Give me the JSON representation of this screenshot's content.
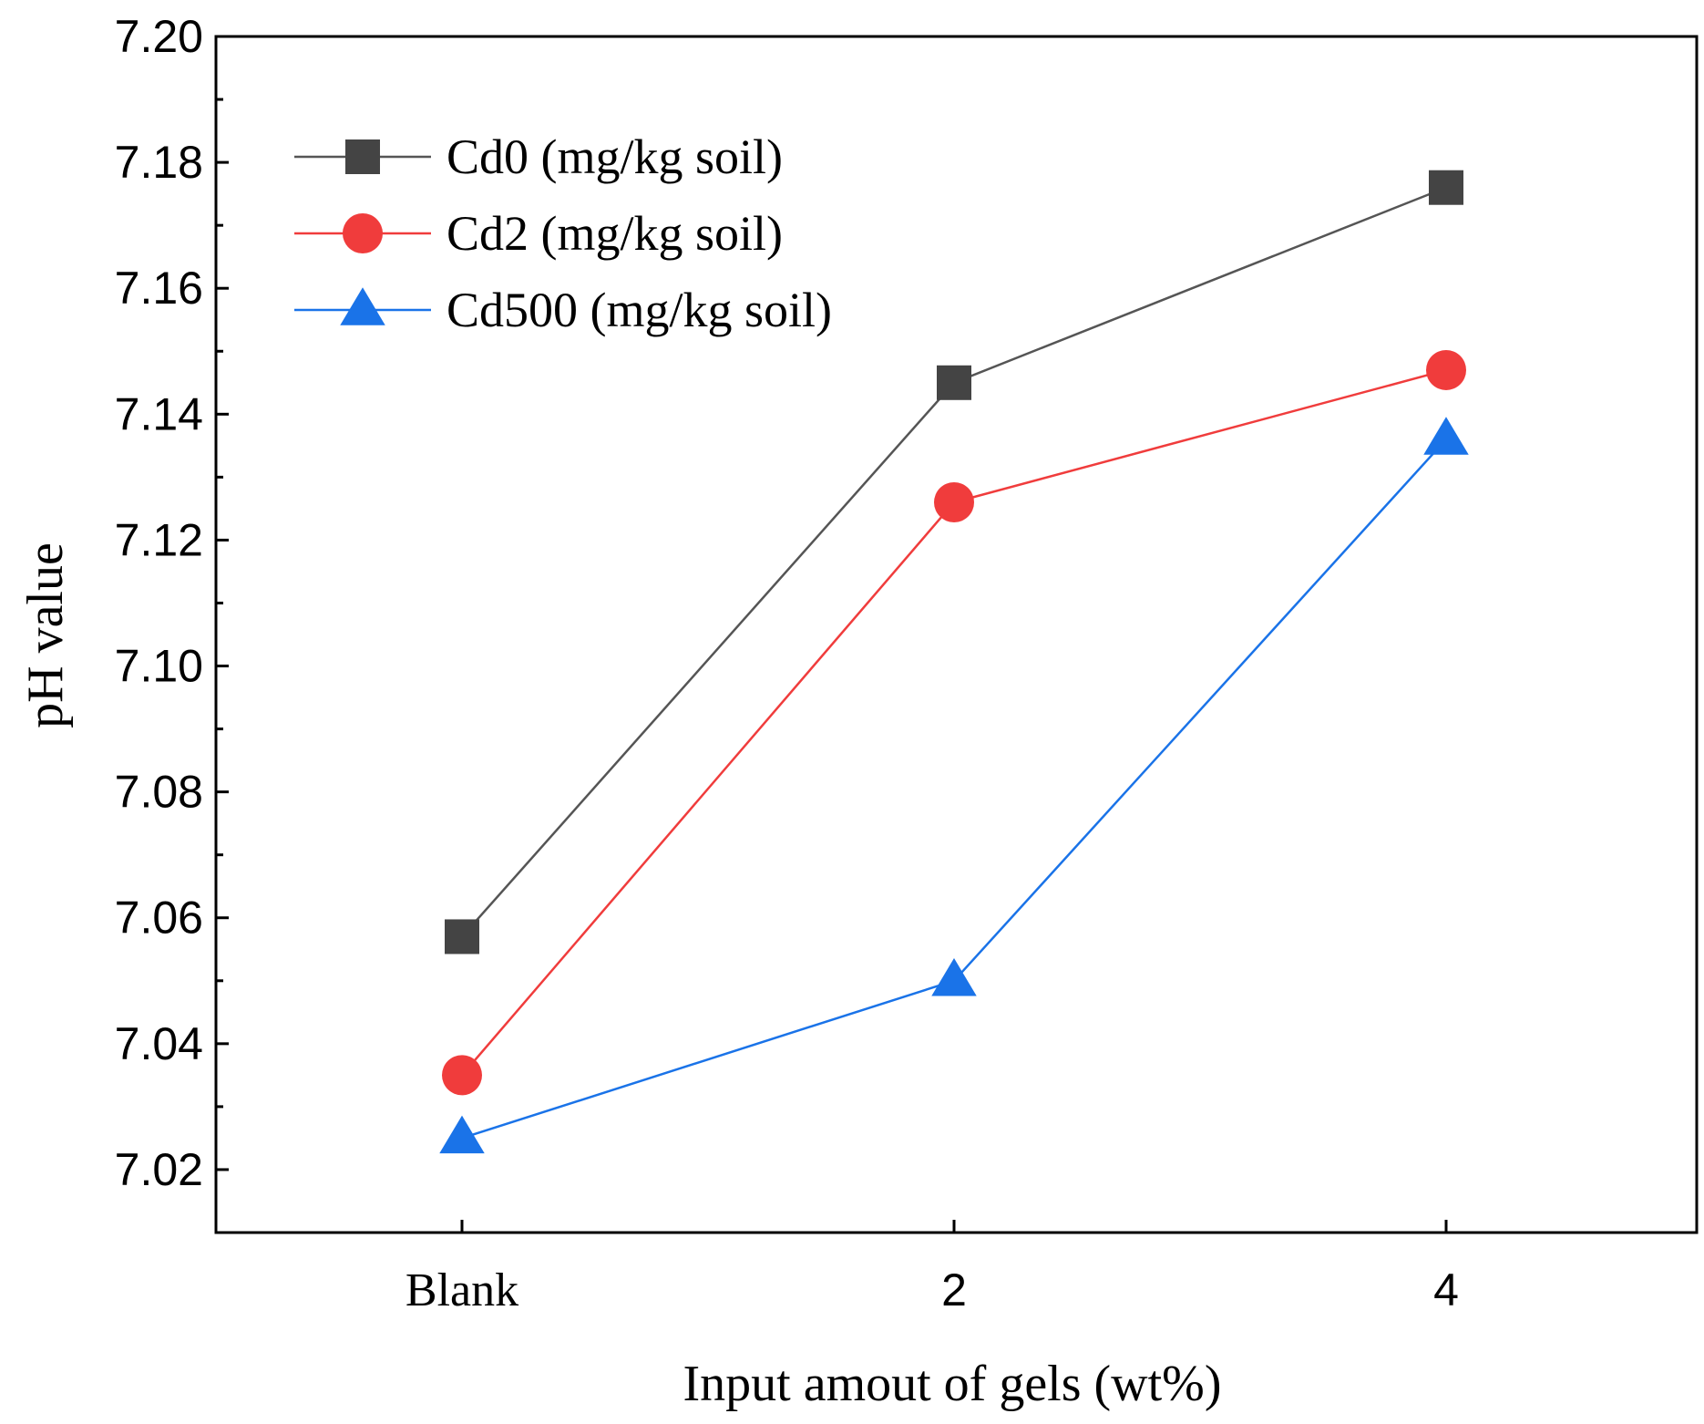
{
  "chart_data": {
    "type": "line",
    "title": "",
    "xlabel": "Input amout of gels (wt%)",
    "ylabel": "pH value",
    "categories": [
      "Blank",
      "2",
      "4"
    ],
    "ylim": [
      7.01,
      7.2
    ],
    "yticks": [
      "7.02",
      "7.04",
      "7.06",
      "7.08",
      "7.10",
      "7.12",
      "7.14",
      "7.16",
      "7.18",
      "7.20"
    ],
    "grid": false,
    "legend_position": "top-left",
    "series": [
      {
        "name": "Cd0 (mg/kg soil)",
        "values": [
          7.057,
          7.145,
          7.176
        ],
        "color": "#444444",
        "line_color": "#555555",
        "marker": "square"
      },
      {
        "name": "Cd2 (mg/kg soil)",
        "values": [
          7.035,
          7.126,
          7.147
        ],
        "color": "#f03c3c",
        "line_color": "#f03c3c",
        "marker": "circle"
      },
      {
        "name": "Cd500 (mg/kg soil)",
        "values": [
          7.025,
          7.05,
          7.136
        ],
        "color": "#1a73e8",
        "line_color": "#1a73e8",
        "marker": "triangle"
      }
    ]
  }
}
